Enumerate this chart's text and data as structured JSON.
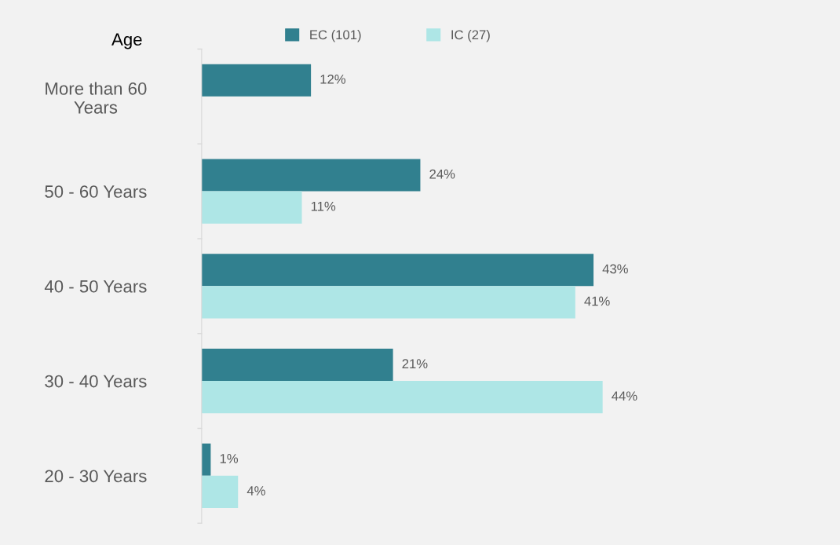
{
  "chart_data": {
    "type": "bar",
    "orientation": "horizontal",
    "ylabel": "Age",
    "categories": [
      "More than 60\nYears",
      "50 - 60 Years",
      "40 - 50 Years",
      "30 - 40 Years",
      "20 - 30 Years"
    ],
    "series": [
      {
        "name": "EC (101)",
        "color": "#31808f",
        "values": [
          12,
          24,
          43,
          21,
          1
        ],
        "value_labels": [
          "12%",
          "24%",
          "43%",
          "21%",
          "1%"
        ]
      },
      {
        "name": "IC (27)",
        "color": "#aee6e6",
        "values": [
          null,
          11,
          41,
          44,
          4
        ],
        "value_labels": [
          null,
          "11%",
          "41%",
          "44%",
          "4%"
        ]
      }
    ],
    "legend": "top",
    "grid": false
  }
}
